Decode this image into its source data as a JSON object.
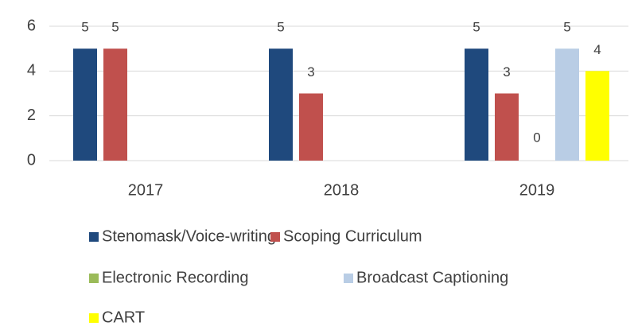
{
  "chart_data": {
    "type": "bar",
    "categories": [
      "2017",
      "2018",
      "2019"
    ],
    "series": [
      {
        "name": "Stenomask/Voice-writing",
        "color": "#1f497d",
        "values": [
          5,
          5,
          5
        ]
      },
      {
        "name": "Scoping Curriculum",
        "color": "#c0504d",
        "values": [
          5,
          3,
          3
        ]
      },
      {
        "name": "Electronic Recording",
        "color": "#9bbb59",
        "values": [
          null,
          null,
          0
        ]
      },
      {
        "name": "Broadcast Captioning",
        "color": "#b9cde5",
        "values": [
          null,
          null,
          5
        ]
      },
      {
        "name": "CART",
        "color": "#ffff00",
        "values": [
          null,
          null,
          4
        ]
      }
    ],
    "ylim": [
      0,
      6
    ],
    "yticks": [
      0,
      2,
      4,
      6
    ],
    "grid": true
  }
}
